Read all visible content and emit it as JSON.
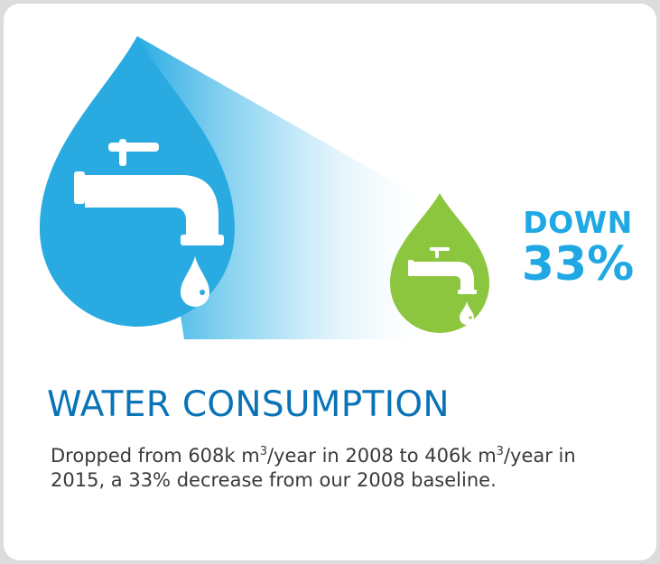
{
  "colors": {
    "big_drop": "#29abe2",
    "small_drop": "#8cc63f",
    "accent_text": "#1fa8e4",
    "title_text": "#0a73b8",
    "body_text": "#3a3a3a"
  },
  "icons": {
    "large": "water-drop-with-faucet",
    "small": "water-drop-with-faucet"
  },
  "badge": {
    "line1": "DOWN",
    "line2": "33%"
  },
  "title": "WATER CONSUMPTION",
  "description": {
    "part1": "Dropped from 608k m",
    "sup1": "3",
    "part2": "/year in 2008 to 406k m",
    "sup2": "3",
    "part3": "/year in 2015, a 33% decrease from our 2008 baseline."
  }
}
